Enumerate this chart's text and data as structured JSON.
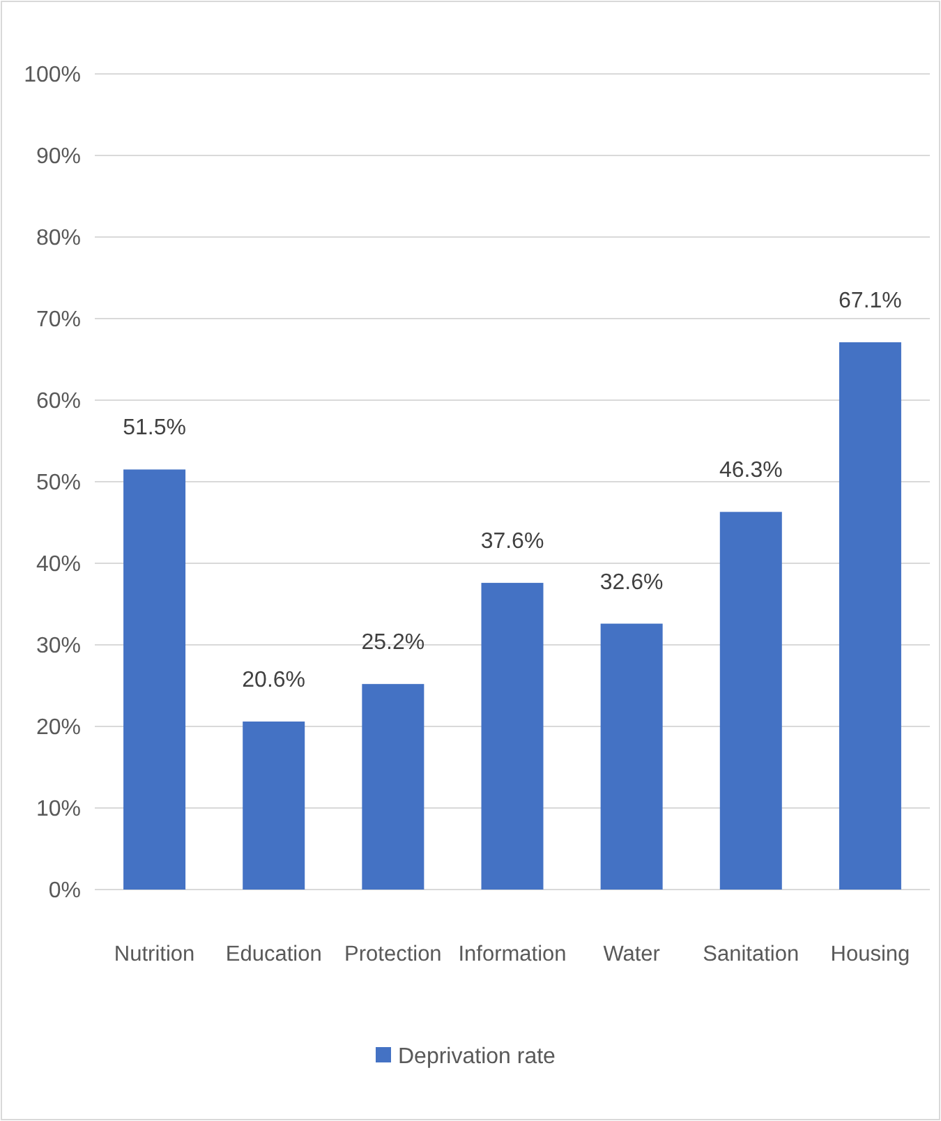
{
  "chart_data": {
    "type": "bar",
    "categories": [
      "Nutrition",
      "Education",
      "Protection",
      "Information",
      "Water",
      "Sanitation",
      "Housing"
    ],
    "series": [
      {
        "name": "Deprivation rate",
        "color": "#4472c4",
        "values": [
          51.5,
          20.6,
          25.2,
          37.6,
          32.6,
          46.3,
          67.1
        ],
        "value_labels": [
          "51.5%",
          "20.6%",
          "25.2%",
          "37.6%",
          "32.6%",
          "46.3%",
          "67.1%"
        ]
      }
    ],
    "ylim": [
      0,
      100
    ],
    "yticks": [
      {
        "value": 0,
        "label": "0%"
      },
      {
        "value": 10,
        "label": "10%"
      },
      {
        "value": 20,
        "label": "20%"
      },
      {
        "value": 30,
        "label": "30%"
      },
      {
        "value": 40,
        "label": "40%"
      },
      {
        "value": 50,
        "label": "50%"
      },
      {
        "value": 60,
        "label": "60%"
      },
      {
        "value": 70,
        "label": "70%"
      },
      {
        "value": 80,
        "label": "80%"
      },
      {
        "value": 90,
        "label": "90%"
      },
      {
        "value": 100,
        "label": "100%"
      }
    ],
    "grid": "y",
    "legend": "bottom"
  }
}
